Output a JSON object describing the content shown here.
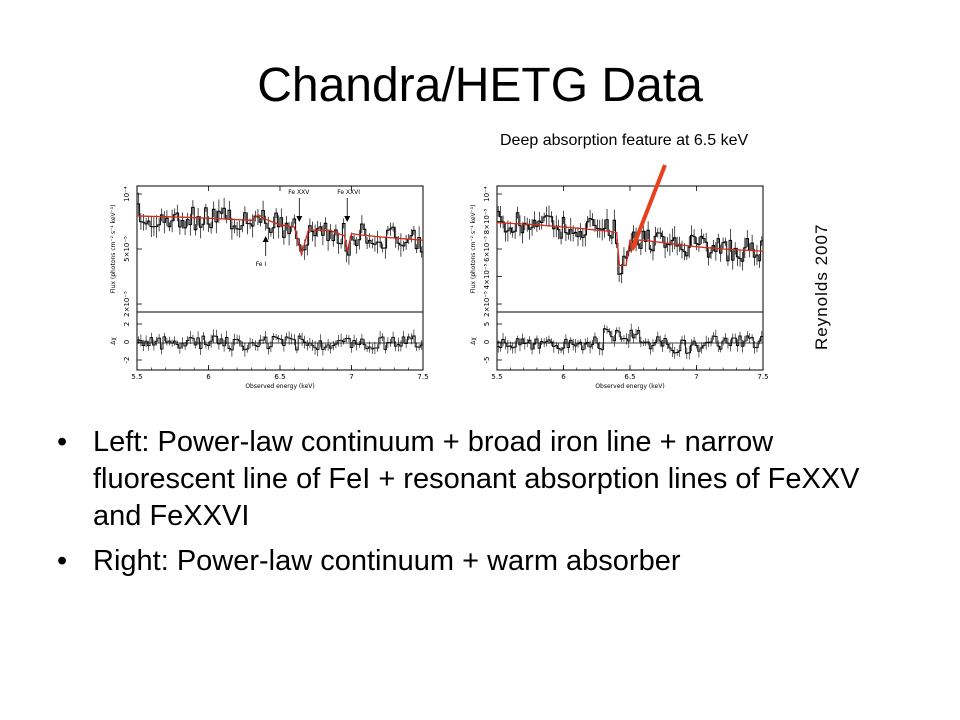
{
  "slide": {
    "title": "Chandra/HETG Data",
    "annotation": "Deep absorption feature at 6.5 keV",
    "credit": "Reynolds 2007",
    "bullets": [
      "Left: Power-law continuum + broad iron line + narrow fluorescent line of FeI + resonant absorption lines of FeXXV and FeXXVI",
      "Right: Power-law continuum + warm absorber"
    ],
    "bullet_glyph": "•"
  },
  "colors": {
    "model": "#d42a1a",
    "arrow": "#e8401c",
    "data": "#000000"
  },
  "chart_data": [
    {
      "type": "line",
      "panel": "left",
      "xlabel": "Observed energy (keV)",
      "ylabel": "Flux (photons cm⁻² s⁻¹ keV⁻¹)",
      "residual_ylabel": "Δχ",
      "xlim": [
        5.5,
        7.5
      ],
      "x_ticks": [
        "5.5",
        "6",
        "6.5",
        "7",
        "7.5"
      ],
      "y_ticks": [
        "10⁻⁴",
        "5×10⁻⁵",
        "2×10⁻⁵"
      ],
      "residual_ticks": [
        "2",
        "0",
        "-2"
      ],
      "line_labels": [
        "Fe XXV",
        "Fe XXVI",
        "Fe I"
      ],
      "series": [
        {
          "name": "model",
          "x": [
            5.5,
            5.8,
            6.0,
            6.3,
            6.35,
            6.4,
            6.5,
            6.6,
            6.65,
            6.7,
            6.75,
            6.85,
            6.95,
            6.97,
            7.0,
            7.05,
            7.2,
            7.5
          ],
          "y": [
            0.2,
            0.21,
            0.22,
            0.24,
            0.19,
            0.23,
            0.28,
            0.3,
            0.55,
            0.32,
            0.33,
            0.33,
            0.38,
            0.52,
            0.36,
            0.37,
            0.39,
            0.42
          ]
        }
      ]
    },
    {
      "type": "line",
      "panel": "right",
      "xlabel": "Observed energy (keV)",
      "ylabel": "Flux (photons cm⁻² s⁻¹ keV⁻¹)",
      "residual_ylabel": "Δχ",
      "xlim": [
        5.5,
        7.5
      ],
      "x_ticks": [
        "5.5",
        "6",
        "6.5",
        "7",
        "7.5"
      ],
      "y_ticks": [
        "10⁻⁴",
        "8×10⁻⁵",
        "6×10⁻⁵",
        "4×10⁻⁵",
        "2×10⁻⁵"
      ],
      "residual_ticks": [
        "5",
        "0",
        "-5"
      ],
      "series": [
        {
          "name": "model",
          "x": [
            5.5,
            5.8,
            6.1,
            6.35,
            6.4,
            6.42,
            6.47,
            6.5,
            6.6,
            6.8,
            7.0,
            7.2,
            7.5
          ],
          "y": [
            0.26,
            0.28,
            0.31,
            0.34,
            0.35,
            0.65,
            0.65,
            0.42,
            0.42,
            0.45,
            0.48,
            0.5,
            0.52
          ]
        }
      ]
    }
  ]
}
